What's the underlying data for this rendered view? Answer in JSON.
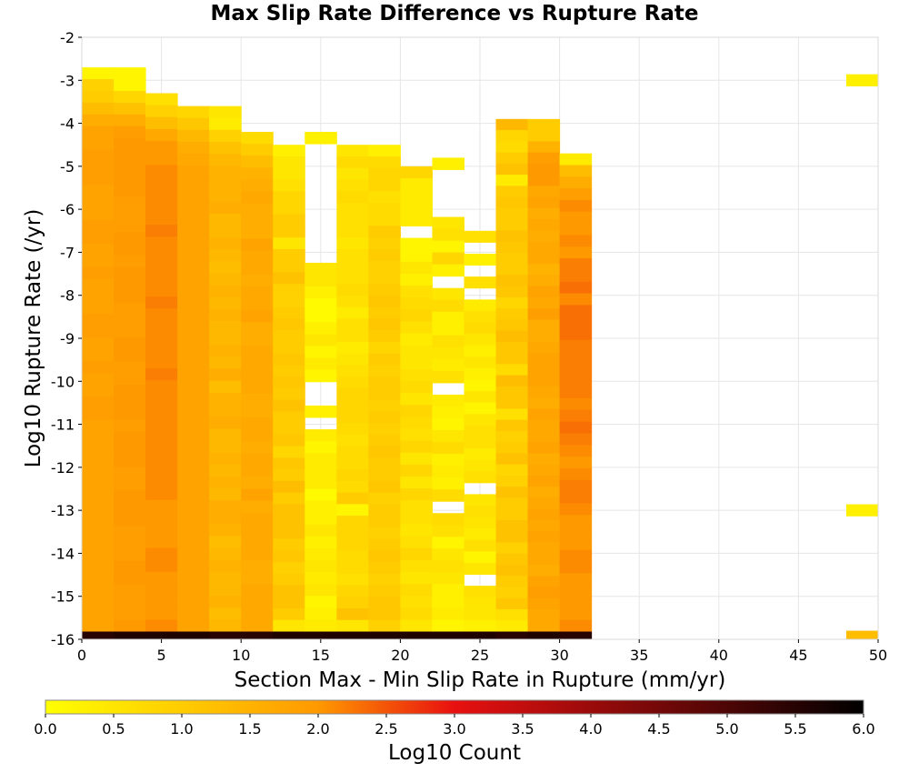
{
  "chart_data": {
    "type": "heatmap",
    "title": "Max Slip Rate Difference vs Rupture Rate",
    "xlabel": "Section Max - Min Slip Rate in Rupture (mm/yr)",
    "ylabel": "Log10 Rupture Rate (/yr)",
    "xlim": [
      0,
      50
    ],
    "ylim": [
      -16,
      -2
    ],
    "x_ticks": [
      0,
      5,
      10,
      15,
      20,
      25,
      30,
      35,
      40,
      45,
      50
    ],
    "y_ticks": [
      -2,
      -3,
      -4,
      -5,
      -6,
      -7,
      -8,
      -9,
      -10,
      -11,
      -12,
      -13,
      -14,
      -15,
      -16
    ],
    "grid": true,
    "x_bin_width": 2,
    "y_bin_height": 0.28,
    "colorbar": {
      "label": "Log10 Count",
      "range": [
        0,
        6
      ],
      "ticks": [
        "0.0",
        "0.5",
        "1.0",
        "1.5",
        "2.0",
        "2.5",
        "3.0",
        "3.5",
        "4.0",
        "4.5",
        "5.0",
        "5.5",
        "6.0"
      ],
      "colors": [
        "#ffff00",
        "#ff9900",
        "#e81010",
        "#000000"
      ]
    },
    "columns": [
      {
        "x_start": 0,
        "top": -2.7,
        "values": [
          0.2,
          0.9,
          1.0,
          1.3,
          1.6,
          1.8,
          1.8,
          1.9,
          1.9,
          1.9,
          1.8,
          1.8,
          1.8,
          1.9,
          1.9,
          1.8,
          1.8,
          1.9,
          1.8,
          1.8,
          1.8,
          1.9,
          1.9,
          1.8,
          1.8,
          1.9,
          1.8,
          1.8,
          1.9,
          1.9,
          1.8,
          1.8,
          1.8,
          1.8,
          1.8,
          1.8,
          1.8,
          1.8,
          1.8,
          1.8,
          1.8,
          1.8,
          1.8,
          1.8,
          1.8,
          1.8,
          1.8,
          1.8
        ],
        "last": 5.5
      },
      {
        "x_start": 2,
        "top": -2.7,
        "values": [
          0.2,
          0.2,
          0.8,
          1.2,
          1.6,
          1.9,
          2.0,
          2.0,
          2.0,
          2.0,
          2.0,
          1.9,
          1.9,
          1.9,
          2.0,
          2.0,
          1.9,
          2.0,
          2.0,
          2.0,
          1.9,
          1.9,
          1.9,
          2.0,
          2.0,
          1.9,
          1.9,
          2.0,
          2.0,
          2.0,
          1.9,
          2.0,
          2.0,
          2.0,
          1.9,
          1.9,
          2.0,
          2.0,
          2.0,
          1.9,
          1.9,
          1.9,
          2.0,
          2.0,
          1.9,
          1.9,
          1.9,
          2.0
        ],
        "last": 5.6
      },
      {
        "x_start": 4,
        "top": -3.3,
        "values": [
          0.6,
          0.9,
          1.3,
          1.7,
          2.0,
          2.0,
          2.1,
          2.1,
          2.1,
          2.1,
          2.1,
          2.2,
          2.1,
          2.1,
          2.1,
          2.1,
          2.1,
          2.2,
          2.1,
          2.1,
          2.1,
          2.1,
          2.1,
          2.2,
          2.1,
          2.1,
          2.1,
          2.1,
          2.1,
          2.1,
          2.1,
          2.1,
          2.1,
          2.1,
          2.0,
          2.0,
          2.0,
          2.0,
          2.1,
          2.1,
          2.0,
          2.0,
          2.0,
          2.0,
          2.1
        ],
        "last": 5.6
      },
      {
        "x_start": 6,
        "top": -3.6,
        "values": [
          0.8,
          1.1,
          1.4,
          1.6,
          1.7,
          1.8,
          1.8,
          1.8,
          1.8,
          1.8,
          1.8,
          1.8,
          1.8,
          1.8,
          1.8,
          1.8,
          1.8,
          1.8,
          1.8,
          1.8,
          1.8,
          1.8,
          1.8,
          1.8,
          1.8,
          1.8,
          1.8,
          1.8,
          1.8,
          1.8,
          1.8,
          1.8,
          1.8,
          1.8,
          1.8,
          1.8,
          1.8,
          1.8,
          1.8,
          1.8,
          1.8,
          1.8,
          1.8,
          1.8
        ],
        "last": 5.6
      },
      {
        "x_start": 8,
        "top": -3.6,
        "values": [
          0.5,
          0.4,
          0.9,
          1.2,
          1.4,
          1.5,
          1.5,
          1.5,
          1.6,
          1.4,
          1.4,
          1.5,
          1.4,
          1.3,
          1.4,
          1.5,
          1.4,
          1.5,
          1.4,
          1.4,
          1.5,
          1.4,
          1.6,
          1.3,
          1.5,
          1.5,
          1.6,
          1.4,
          1.4,
          1.5,
          1.4,
          1.5,
          1.4,
          1.6,
          1.6,
          1.5,
          1.3,
          1.4,
          1.5,
          1.4,
          1.4,
          1.5,
          1.3,
          1.4
        ],
        "last": 5.5
      },
      {
        "x_start": 10,
        "top": -4.2,
        "values": [
          0.7,
          1.0,
          1.3,
          1.5,
          1.6,
          1.7,
          1.6,
          1.6,
          1.6,
          1.8,
          1.7,
          1.7,
          1.6,
          1.7,
          1.7,
          1.8,
          1.6,
          1.6,
          1.7,
          1.7,
          1.7,
          1.7,
          1.6,
          1.6,
          1.7,
          1.7,
          1.6,
          1.7,
          1.7,
          1.6,
          1.8,
          1.6,
          1.7,
          1.7,
          1.7,
          1.7,
          1.6,
          1.6,
          1.7,
          1.7,
          1.7,
          1.7
        ],
        "last": 5.5
      },
      {
        "x_start": 12,
        "top": -4.5,
        "values": [
          0.3,
          0.5,
          0.5,
          0.6,
          0.8,
          0.8,
          1.0,
          1.0,
          0.5,
          1.0,
          1.0,
          1.2,
          0.9,
          0.9,
          1.0,
          1.1,
          1.0,
          1.0,
          1.1,
          1.0,
          1.1,
          1.0,
          1.2,
          1.0,
          1.0,
          1.1,
          0.8,
          1.1,
          1.0,
          1.3,
          1.0,
          1.2,
          1.2,
          1.2,
          1.0,
          1.1,
          0.9,
          1.0,
          1.2,
          1.2,
          1.0,
          0.5
        ],
        "last": 5.6
      },
      {
        "x_start": 14,
        "top": -4.2,
        "values": [
          0.3,
          null,
          null,
          null,
          null,
          null,
          null,
          null,
          null,
          null,
          null,
          0.5,
          0.5,
          0.3,
          0.1,
          0.1,
          0.3,
          0.5,
          0.2,
          0.4,
          0.2,
          null,
          null,
          0.3,
          null,
          0.4,
          0.2,
          0.4,
          0.4,
          0.4,
          0.1,
          0.3,
          0.3,
          0.5,
          0.3,
          0.4,
          0.5,
          0.4,
          0.5,
          0.2,
          0.3,
          0.4
        ],
        "last": 5.6
      },
      {
        "x_start": 16,
        "top": -4.5,
        "values": [
          0.5,
          0.7,
          0.5,
          0.6,
          0.7,
          0.6,
          0.6,
          0.6,
          0.5,
          0.6,
          0.6,
          0.6,
          0.7,
          0.6,
          0.4,
          0.6,
          0.6,
          0.4,
          0.5,
          0.6,
          0.7,
          0.8,
          0.8,
          0.8,
          0.7,
          0.6,
          0.7,
          0.7,
          0.8,
          0.7,
          1.0,
          0.2,
          0.8,
          0.8,
          0.8,
          0.7,
          0.7,
          0.6,
          0.8,
          0.9,
          1.2,
          0.5
        ],
        "last": 5.6
      },
      {
        "x_start": 18,
        "top": -4.5,
        "values": [
          0.3,
          0.7,
          0.8,
          0.8,
          0.6,
          0.7,
          0.7,
          1.0,
          0.9,
          1.0,
          0.9,
          0.9,
          1.0,
          1.1,
          1.0,
          1.1,
          1.0,
          0.8,
          1.0,
          0.9,
          1.0,
          1.0,
          0.9,
          1.0,
          0.9,
          1.0,
          1.1,
          1.0,
          1.0,
          1.1,
          0.9,
          1.0,
          1.0,
          0.9,
          1.0,
          1.1,
          1.0,
          0.9,
          1.0,
          1.1,
          1.1,
          0.9
        ],
        "last": 5.6
      },
      {
        "x_start": 20,
        "top": -5.0,
        "values": [
          0.8,
          0.4,
          0.4,
          0.4,
          0.4,
          null,
          0.2,
          0.2,
          0.5,
          0.3,
          0.6,
          0.7,
          0.8,
          0.6,
          0.4,
          0.5,
          0.5,
          0.6,
          0.7,
          0.5,
          0.8,
          0.7,
          0.6,
          0.8,
          0.5,
          0.8,
          0.5,
          0.8,
          0.6,
          0.6,
          0.5,
          0.6,
          0.8,
          0.6,
          0.5,
          0.7,
          0.6,
          0.7,
          0.5
        ],
        "last": 5.6
      },
      {
        "x_start": 22,
        "top": -4.8,
        "values": [
          0.3,
          null,
          null,
          null,
          null,
          0.5,
          0.6,
          0.2,
          0.8,
          0.3,
          null,
          0.5,
          0.7,
          0.3,
          0.3,
          0.6,
          0.5,
          0.4,
          0.6,
          null,
          0.4,
          0.3,
          0.2,
          0.5,
          0.7,
          0.3,
          0.4,
          0.3,
          0.7,
          null,
          0.7,
          0.6,
          0.2,
          0.5,
          0.6,
          0.5,
          0.3,
          0.3,
          0.4,
          0.2
        ],
        "last": 5.6
      },
      {
        "x_start": 24,
        "top": -6.5,
        "values": [
          0.6,
          null,
          0.3,
          null,
          0.6,
          null,
          0.4,
          0.6,
          0.7,
          0.5,
          0.3,
          0.5,
          0.3,
          0.2,
          0.5,
          0.2,
          0.5,
          0.6,
          0.6,
          0.4,
          0.5,
          0.6,
          null,
          0.5,
          0.6,
          0.5,
          0.4,
          0.6,
          0.2,
          0.5,
          null,
          0.6,
          0.5,
          0.5,
          0.3
        ],
        "last": 5.6
      },
      {
        "x_start": 26,
        "top": -3.9,
        "values": [
          1.4,
          0.8,
          0.7,
          1.0,
          1.2,
          0.4,
          1.0,
          1.1,
          1.0,
          1.0,
          1.2,
          1.1,
          1.0,
          1.0,
          1.2,
          1.1,
          0.8,
          1.0,
          1.1,
          1.3,
          1.1,
          1.1,
          0.7,
          1.3,
          1.1,
          1.1,
          0.6,
          1.1,
          0.9,
          1.0,
          1.2,
          0.8,
          0.9,
          1.2,
          1.0,
          1.0,
          1.2,
          1.2,
          0.9,
          1.1,
          1.2,
          1.0,
          0.9,
          1.1,
          0.6,
          0.4
        ],
        "last": 5.5
      },
      {
        "x_start": 28,
        "top": -3.9,
        "values": [
          1.0,
          1.0,
          1.5,
          1.9,
          2.0,
          2.0,
          1.7,
          1.8,
          1.6,
          1.7,
          1.6,
          1.7,
          1.7,
          1.5,
          1.6,
          1.8,
          1.7,
          1.9,
          1.6,
          1.6,
          1.7,
          1.8,
          1.8,
          1.8,
          1.7,
          1.6,
          1.8,
          1.7,
          1.7,
          1.8,
          1.6,
          1.7,
          1.8,
          1.6,
          1.7,
          1.8,
          1.7,
          1.8,
          1.7,
          1.7,
          1.6,
          1.8,
          1.9,
          1.8,
          1.7,
          1.7
        ],
        "last": 5.6
      },
      {
        "x_start": 30,
        "top": -4.7,
        "values": [
          0.4,
          1.3,
          1.6,
          1.9,
          2.1,
          2.0,
          2.0,
          2.1,
          2.0,
          2.2,
          2.2,
          2.3,
          2.1,
          2.3,
          2.3,
          2.3,
          2.2,
          2.2,
          2.2,
          2.2,
          2.2,
          2.1,
          2.2,
          2.3,
          2.2,
          2.1,
          2.0,
          2.1,
          2.2,
          2.2,
          2.1,
          2.0,
          2.0,
          2.0,
          2.1,
          2.1,
          2.0,
          2.0,
          2.0,
          2.0,
          2.1
        ],
        "last": 5.5
      },
      {
        "x_start": 48,
        "bins": [
          {
            "y": -3.0,
            "value": 0.3
          },
          {
            "y": -13.0,
            "value": 0.3
          },
          {
            "y": -16.0,
            "value": 1.3
          }
        ]
      }
    ]
  }
}
